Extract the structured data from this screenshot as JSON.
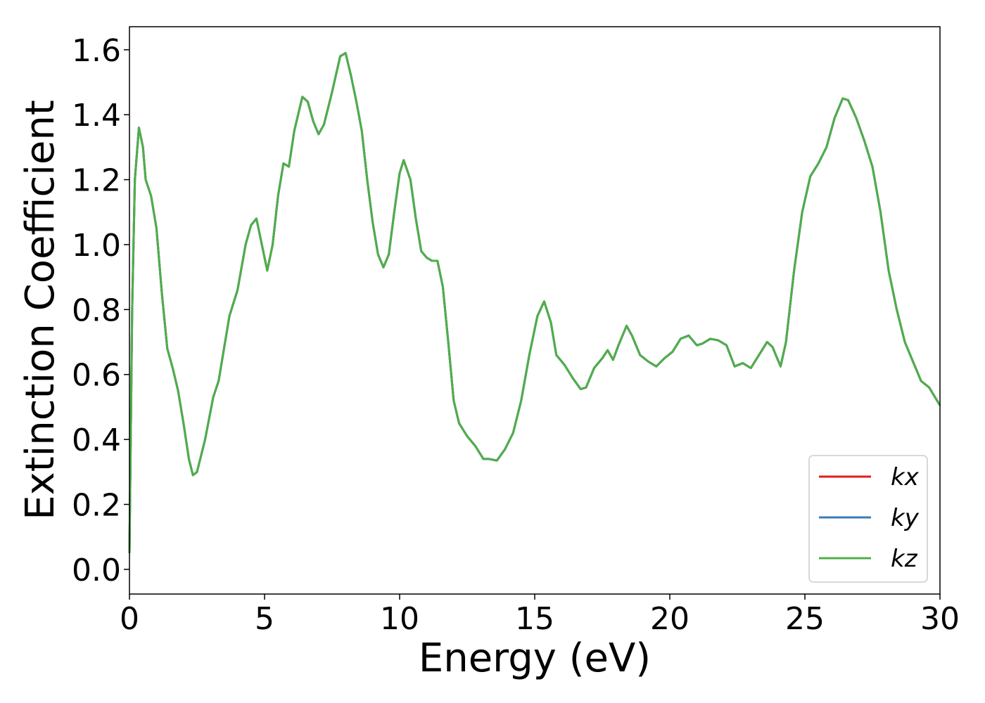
{
  "chart_data": {
    "type": "line",
    "xlabel": "Energy (eV)",
    "ylabel": "Extinction Coefficient",
    "x": [
      0,
      0.1,
      0.2,
      0.35,
      0.5,
      0.6,
      0.8,
      1.0,
      1.2,
      1.4,
      1.6,
      1.8,
      2.0,
      2.2,
      2.35,
      2.5,
      2.8,
      3.1,
      3.3,
      3.5,
      3.7,
      4.0,
      4.3,
      4.5,
      4.7,
      4.9,
      5.1,
      5.3,
      5.5,
      5.7,
      5.9,
      6.1,
      6.4,
      6.6,
      6.8,
      7.0,
      7.2,
      7.5,
      7.8,
      8.0,
      8.2,
      8.4,
      8.6,
      8.8,
      9.0,
      9.2,
      9.4,
      9.6,
      9.8,
      10.0,
      10.15,
      10.4,
      10.6,
      10.8,
      11.0,
      11.2,
      11.4,
      11.6,
      11.8,
      12.0,
      12.2,
      12.5,
      12.8,
      13.1,
      13.3,
      13.6,
      13.9,
      14.2,
      14.5,
      14.8,
      15.1,
      15.35,
      15.6,
      15.8,
      16.1,
      16.4,
      16.7,
      16.9,
      17.2,
      17.5,
      17.7,
      17.9,
      18.1,
      18.4,
      18.6,
      18.9,
      19.2,
      19.5,
      19.8,
      20.1,
      20.4,
      20.7,
      21.0,
      21.2,
      21.5,
      21.8,
      22.1,
      22.4,
      22.7,
      23.0,
      23.3,
      23.6,
      23.8,
      24.1,
      24.3,
      24.6,
      24.9,
      25.2,
      25.5,
      25.8,
      26.1,
      26.4,
      26.6,
      26.9,
      27.2,
      27.5,
      27.8,
      28.1,
      28.4,
      28.7,
      29.0,
      29.3,
      29.6,
      30.0
    ],
    "series": [
      {
        "name": "kx",
        "color": "#e41a1c",
        "values": [
          0.05,
          0.8,
          1.2,
          1.36,
          1.3,
          1.2,
          1.15,
          1.05,
          0.85,
          0.68,
          0.62,
          0.55,
          0.45,
          0.34,
          0.29,
          0.3,
          0.4,
          0.53,
          0.58,
          0.68,
          0.78,
          0.86,
          1.0,
          1.06,
          1.08,
          1.0,
          0.92,
          1.0,
          1.15,
          1.25,
          1.24,
          1.35,
          1.455,
          1.44,
          1.38,
          1.34,
          1.37,
          1.47,
          1.58,
          1.59,
          1.52,
          1.44,
          1.35,
          1.2,
          1.07,
          0.97,
          0.93,
          0.97,
          1.1,
          1.22,
          1.26,
          1.2,
          1.08,
          0.98,
          0.96,
          0.95,
          0.95,
          0.87,
          0.7,
          0.52,
          0.45,
          0.41,
          0.38,
          0.34,
          0.34,
          0.335,
          0.37,
          0.42,
          0.52,
          0.66,
          0.78,
          0.825,
          0.76,
          0.66,
          0.63,
          0.59,
          0.555,
          0.56,
          0.62,
          0.65,
          0.675,
          0.645,
          0.69,
          0.75,
          0.72,
          0.66,
          0.64,
          0.625,
          0.65,
          0.67,
          0.71,
          0.72,
          0.69,
          0.695,
          0.71,
          0.705,
          0.69,
          0.625,
          0.635,
          0.62,
          0.66,
          0.7,
          0.685,
          0.625,
          0.7,
          0.92,
          1.1,
          1.21,
          1.25,
          1.3,
          1.39,
          1.45,
          1.445,
          1.39,
          1.32,
          1.24,
          1.1,
          0.92,
          0.8,
          0.7,
          0.64,
          0.58,
          0.56,
          0.505
        ]
      },
      {
        "name": "ky",
        "color": "#377eb8",
        "values": [
          0.05,
          0.8,
          1.2,
          1.36,
          1.3,
          1.2,
          1.15,
          1.05,
          0.85,
          0.68,
          0.62,
          0.55,
          0.45,
          0.34,
          0.29,
          0.3,
          0.4,
          0.53,
          0.58,
          0.68,
          0.78,
          0.86,
          1.0,
          1.06,
          1.08,
          1.0,
          0.92,
          1.0,
          1.15,
          1.25,
          1.24,
          1.35,
          1.455,
          1.44,
          1.38,
          1.34,
          1.37,
          1.47,
          1.58,
          1.59,
          1.52,
          1.44,
          1.35,
          1.2,
          1.07,
          0.97,
          0.93,
          0.97,
          1.1,
          1.22,
          1.26,
          1.2,
          1.08,
          0.98,
          0.96,
          0.95,
          0.95,
          0.87,
          0.7,
          0.52,
          0.45,
          0.41,
          0.38,
          0.34,
          0.34,
          0.335,
          0.37,
          0.42,
          0.52,
          0.66,
          0.78,
          0.825,
          0.76,
          0.66,
          0.63,
          0.59,
          0.555,
          0.56,
          0.62,
          0.65,
          0.675,
          0.645,
          0.69,
          0.75,
          0.72,
          0.66,
          0.64,
          0.625,
          0.65,
          0.67,
          0.71,
          0.72,
          0.69,
          0.695,
          0.71,
          0.705,
          0.69,
          0.625,
          0.635,
          0.62,
          0.66,
          0.7,
          0.685,
          0.625,
          0.7,
          0.92,
          1.1,
          1.21,
          1.25,
          1.3,
          1.39,
          1.45,
          1.445,
          1.39,
          1.32,
          1.24,
          1.1,
          0.92,
          0.8,
          0.7,
          0.64,
          0.58,
          0.56,
          0.505
        ]
      },
      {
        "name": "kz",
        "color": "#4daf4a",
        "values": [
          0.05,
          0.8,
          1.2,
          1.36,
          1.3,
          1.2,
          1.15,
          1.05,
          0.85,
          0.68,
          0.62,
          0.55,
          0.45,
          0.34,
          0.29,
          0.3,
          0.4,
          0.53,
          0.58,
          0.68,
          0.78,
          0.86,
          1.0,
          1.06,
          1.08,
          1.0,
          0.92,
          1.0,
          1.15,
          1.25,
          1.24,
          1.35,
          1.455,
          1.44,
          1.38,
          1.34,
          1.37,
          1.47,
          1.58,
          1.59,
          1.52,
          1.44,
          1.35,
          1.2,
          1.07,
          0.97,
          0.93,
          0.97,
          1.1,
          1.22,
          1.26,
          1.2,
          1.08,
          0.98,
          0.96,
          0.95,
          0.95,
          0.87,
          0.7,
          0.52,
          0.45,
          0.41,
          0.38,
          0.34,
          0.34,
          0.335,
          0.37,
          0.42,
          0.52,
          0.66,
          0.78,
          0.825,
          0.76,
          0.66,
          0.63,
          0.59,
          0.555,
          0.56,
          0.62,
          0.65,
          0.675,
          0.645,
          0.69,
          0.75,
          0.72,
          0.66,
          0.64,
          0.625,
          0.65,
          0.67,
          0.71,
          0.72,
          0.69,
          0.695,
          0.71,
          0.705,
          0.69,
          0.625,
          0.635,
          0.62,
          0.66,
          0.7,
          0.685,
          0.625,
          0.7,
          0.92,
          1.1,
          1.21,
          1.25,
          1.3,
          1.39,
          1.45,
          1.445,
          1.39,
          1.32,
          1.24,
          1.1,
          0.92,
          0.8,
          0.7,
          0.64,
          0.58,
          0.56,
          0.505
        ]
      }
    ],
    "xlim": [
      0,
      30
    ],
    "xticks": [
      0,
      5,
      10,
      15,
      20,
      25,
      30
    ],
    "ylim": [
      -0.076,
      1.671
    ],
    "yticks": [
      {
        "value": 0,
        "label": "0.0"
      },
      0.2,
      0.4,
      0.6,
      0.8,
      {
        "value": 1,
        "label": "1.0"
      },
      1.2,
      1.4,
      1.6
    ],
    "legend": "lower right",
    "grid": false
  }
}
